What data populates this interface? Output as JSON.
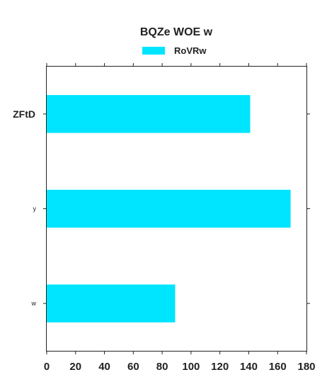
{
  "chart_data": {
    "type": "bar",
    "orientation": "horizontal",
    "title": "BQZe WOE w",
    "categories": [
      "ZFtD",
      "y",
      "w"
    ],
    "series": [
      {
        "name": "RoVRw",
        "values": [
          141,
          169,
          89
        ],
        "color": "#00e5ff"
      }
    ],
    "xlabel": "",
    "ylabel": "",
    "xlim": [
      0,
      180
    ],
    "xticks": [
      0,
      20,
      40,
      60,
      80,
      100,
      120,
      140,
      160,
      180
    ],
    "grid": false,
    "legend_position": "top-center"
  }
}
